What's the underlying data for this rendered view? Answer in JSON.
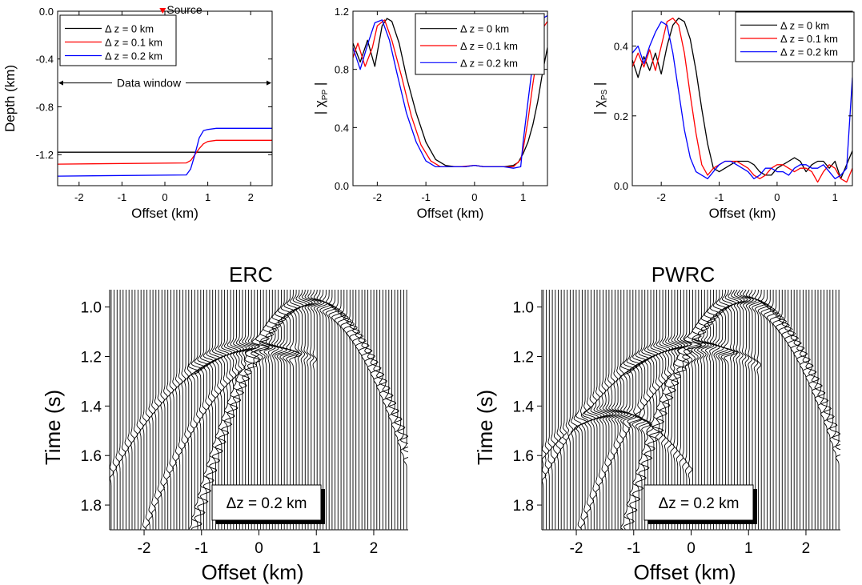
{
  "chart_data": [
    {
      "type": "line",
      "id": "depth",
      "xlabel": "Offset (km)",
      "ylabel": "Depth (km)",
      "xlim": [
        -2.5,
        2.5
      ],
      "ylim": [
        -1.46,
        0.0
      ],
      "xticks": [
        -2,
        -1,
        0,
        1,
        2
      ],
      "yticks": [
        0.0,
        -0.4,
        -0.8,
        -1.2
      ],
      "ytick_labels": [
        "0.0",
        "-0.4",
        "-0.8",
        "-1.2"
      ],
      "source_label": "Source",
      "source_color": "#ff0000",
      "source_x": -0.05,
      "window_label": "Data window",
      "window_range": [
        -2.5,
        2.5
      ],
      "window_depth": -0.6,
      "series": [
        {
          "name": "Δ z = 0 km",
          "color": "#000000",
          "x": [
            -2.5,
            0.5,
            0.8,
            1.0,
            2.5
          ],
          "y": [
            -1.18,
            -1.18,
            -1.18,
            -1.18,
            -1.18
          ]
        },
        {
          "name": "Δ z = 0.1 km",
          "color": "#ff0000",
          "x": [
            -2.5,
            0.5,
            0.6,
            0.7,
            0.8,
            0.9,
            1.0,
            1.2,
            2.5
          ],
          "y": [
            -1.28,
            -1.27,
            -1.25,
            -1.2,
            -1.15,
            -1.11,
            -1.09,
            -1.08,
            -1.08
          ]
        },
        {
          "name": "Δ z = 0.2 km",
          "color": "#0000ff",
          "x": [
            -2.5,
            0.5,
            0.6,
            0.7,
            0.8,
            0.9,
            1.0,
            1.2,
            2.5
          ],
          "y": [
            -1.38,
            -1.37,
            -1.32,
            -1.2,
            -1.06,
            -1.0,
            -0.99,
            -0.98,
            -0.98
          ]
        }
      ]
    },
    {
      "type": "line",
      "id": "pp",
      "xlabel": "Offset (km)",
      "ylabel_prefix": "| χ",
      "ylabel_sub": "PP",
      "ylabel_suffix": " |",
      "xlim": [
        -2.5,
        1.5
      ],
      "ylim": [
        0.0,
        1.2
      ],
      "xticks": [
        -2,
        -1,
        0,
        1
      ],
      "yticks": [
        0.0,
        0.4,
        0.8,
        1.2
      ],
      "ytick_labels": [
        "0.0",
        "0.4",
        "0.8",
        "1.2"
      ],
      "series": [
        {
          "name": "Δ z = 0 km",
          "color": "#000000",
          "x": [
            -2.5,
            -2.35,
            -2.2,
            -2.05,
            -1.9,
            -1.8,
            -1.7,
            -1.55,
            -1.4,
            -1.2,
            -1.0,
            -0.8,
            -0.6,
            -0.4,
            -0.2,
            0.0,
            0.2,
            0.4,
            0.6,
            0.8,
            0.9,
            1.0,
            1.1,
            1.2,
            1.3,
            1.4,
            1.5
          ],
          "y": [
            0.98,
            0.85,
            1.0,
            0.82,
            1.1,
            1.15,
            1.13,
            0.98,
            0.75,
            0.5,
            0.3,
            0.18,
            0.14,
            0.13,
            0.13,
            0.14,
            0.13,
            0.13,
            0.13,
            0.14,
            0.16,
            0.22,
            0.3,
            0.42,
            0.58,
            0.78,
            0.95
          ]
        },
        {
          "name": "Δ z = 0.1 km",
          "color": "#ff0000",
          "x": [
            -2.5,
            -2.4,
            -2.25,
            -2.1,
            -2.0,
            -1.85,
            -1.7,
            -1.5,
            -1.3,
            -1.1,
            -0.9,
            -0.7,
            -0.5,
            -0.3,
            0.0,
            0.2,
            0.4,
            0.6,
            0.8,
            0.95,
            1.0,
            1.1,
            1.2,
            1.3,
            1.4,
            1.5
          ],
          "y": [
            0.88,
            0.98,
            0.82,
            0.95,
            1.1,
            1.14,
            1.0,
            0.75,
            0.48,
            0.28,
            0.17,
            0.13,
            0.13,
            0.13,
            0.14,
            0.13,
            0.13,
            0.13,
            0.13,
            0.18,
            0.25,
            0.45,
            0.7,
            0.92,
            1.08,
            1.13
          ]
        },
        {
          "name": "Δ z = 0.2 km",
          "color": "#0000ff",
          "x": [
            -2.5,
            -2.35,
            -2.2,
            -2.05,
            -1.9,
            -1.75,
            -1.6,
            -1.4,
            -1.2,
            -1.0,
            -0.8,
            -0.6,
            -0.4,
            -0.2,
            0.0,
            0.2,
            0.4,
            0.6,
            0.8,
            0.95,
            1.0,
            1.1,
            1.2,
            1.3,
            1.4,
            1.5
          ],
          "y": [
            0.95,
            0.8,
            0.97,
            1.12,
            1.14,
            1.0,
            0.78,
            0.5,
            0.3,
            0.17,
            0.13,
            0.13,
            0.13,
            0.13,
            0.14,
            0.13,
            0.13,
            0.13,
            0.12,
            0.13,
            0.3,
            0.58,
            0.85,
            1.05,
            1.15,
            1.17
          ]
        }
      ]
    },
    {
      "type": "line",
      "id": "ps",
      "xlabel": "Offset (km)",
      "ylabel_prefix": "| χ",
      "ylabel_sub": "PS",
      "ylabel_suffix": " |",
      "xlim": [
        -2.5,
        1.3
      ],
      "ylim": [
        0.0,
        0.5
      ],
      "xticks": [
        -2,
        -1,
        0,
        1
      ],
      "yticks": [
        0.0,
        0.2,
        0.4
      ],
      "ytick_labels": [
        "0.0",
        "0.2",
        "0.4"
      ],
      "series": [
        {
          "name": "Δ z = 0 km",
          "color": "#000000",
          "x": [
            -2.5,
            -2.4,
            -2.3,
            -2.2,
            -2.1,
            -2.0,
            -1.9,
            -1.8,
            -1.7,
            -1.6,
            -1.5,
            -1.4,
            -1.3,
            -1.2,
            -1.1,
            -1.0,
            -0.9,
            -0.8,
            -0.7,
            -0.6,
            -0.5,
            -0.4,
            -0.3,
            -0.2,
            -0.1,
            0.0,
            0.1,
            0.2,
            0.3,
            0.4,
            0.5,
            0.6,
            0.7,
            0.8,
            0.9,
            1.0,
            1.1,
            1.2,
            1.3
          ],
          "y": [
            0.36,
            0.31,
            0.37,
            0.33,
            0.38,
            0.32,
            0.4,
            0.46,
            0.48,
            0.47,
            0.42,
            0.33,
            0.22,
            0.12,
            0.05,
            0.04,
            0.05,
            0.06,
            0.07,
            0.07,
            0.07,
            0.06,
            0.04,
            0.03,
            0.03,
            0.05,
            0.06,
            0.07,
            0.08,
            0.07,
            0.04,
            0.06,
            0.07,
            0.07,
            0.05,
            0.07,
            0.02,
            0.06,
            0.1
          ]
        },
        {
          "name": "Δ z = 0.1 km",
          "color": "#ff0000",
          "x": [
            -2.5,
            -2.4,
            -2.3,
            -2.2,
            -2.1,
            -2.0,
            -1.9,
            -1.8,
            -1.7,
            -1.6,
            -1.5,
            -1.4,
            -1.3,
            -1.2,
            -1.1,
            -1.0,
            -0.9,
            -0.8,
            -0.7,
            -0.6,
            -0.5,
            -0.4,
            -0.3,
            -0.2,
            -0.1,
            0.0,
            0.1,
            0.2,
            0.3,
            0.4,
            0.5,
            0.6,
            0.7,
            0.8,
            0.9,
            1.0,
            1.1,
            1.2,
            1.3
          ],
          "y": [
            0.34,
            0.38,
            0.34,
            0.39,
            0.33,
            0.4,
            0.47,
            0.48,
            0.46,
            0.38,
            0.26,
            0.15,
            0.06,
            0.03,
            0.05,
            0.06,
            0.07,
            0.07,
            0.07,
            0.06,
            0.05,
            0.03,
            0.02,
            0.03,
            0.05,
            0.06,
            0.06,
            0.05,
            0.04,
            0.05,
            0.05,
            0.04,
            0.01,
            0.04,
            0.06,
            0.05,
            0.02,
            0.01,
            0.05
          ]
        },
        {
          "name": "Δ z = 0.2 km",
          "color": "#0000ff",
          "x": [
            -2.5,
            -2.4,
            -2.3,
            -2.2,
            -2.1,
            -2.0,
            -1.9,
            -1.8,
            -1.7,
            -1.6,
            -1.5,
            -1.4,
            -1.3,
            -1.2,
            -1.1,
            -1.0,
            -0.9,
            -0.8,
            -0.7,
            -0.6,
            -0.5,
            -0.4,
            -0.3,
            -0.2,
            -0.1,
            0.0,
            0.1,
            0.2,
            0.3,
            0.4,
            0.5,
            0.6,
            0.7,
            0.8,
            0.9,
            1.0,
            1.1,
            1.2,
            1.3
          ],
          "y": [
            0.38,
            0.4,
            0.35,
            0.4,
            0.44,
            0.47,
            0.46,
            0.38,
            0.27,
            0.16,
            0.08,
            0.04,
            0.03,
            0.02,
            0.04,
            0.06,
            0.07,
            0.07,
            0.06,
            0.05,
            0.04,
            0.02,
            0.03,
            0.05,
            0.05,
            0.04,
            0.04,
            0.03,
            0.05,
            0.06,
            0.06,
            0.05,
            0.05,
            0.06,
            0.04,
            0.02,
            0.03,
            0.05,
            0.31
          ]
        }
      ]
    },
    {
      "type": "seismic",
      "id": "erc",
      "title": "ERC",
      "xlabel": "Offset (km)",
      "ylabel": "Time (s)",
      "xlim": [
        -2.6,
        2.6
      ],
      "ylim": [
        1.9,
        0.93
      ],
      "xticks": [
        -2,
        -1,
        0,
        1,
        2
      ],
      "yticks": [
        1.0,
        1.2,
        1.4,
        1.6,
        1.8
      ],
      "ytick_labels": [
        "1.0",
        "1.2",
        "1.4",
        "1.6",
        "1.8"
      ],
      "annotation": "Δz = 0.2 km",
      "events": [
        {
          "x0": 0.9,
          "t0": 0.98,
          "curv": 0.22,
          "range": [
            -2.6,
            2.6
          ],
          "bold_range": [
            -2.6,
            2.6
          ]
        },
        {
          "x0": -0.05,
          "t0": 1.16,
          "curv": 0.08,
          "range": [
            -2.6,
            0.6
          ],
          "bold_range": [
            -1.2,
            0.6
          ]
        },
        {
          "x0": 0.45,
          "t0": 1.18,
          "curv": 0.12,
          "range": [
            -2.6,
            1.0
          ],
          "bold_range": []
        }
      ]
    },
    {
      "type": "seismic",
      "id": "pwrc",
      "title": "PWRC",
      "xlabel": "Offset (km)",
      "ylabel": "Time (s)",
      "xlim": [
        -2.6,
        2.6
      ],
      "ylim": [
        1.9,
        0.93
      ],
      "xticks": [
        -2,
        -1,
        0,
        1,
        2
      ],
      "yticks": [
        1.0,
        1.2,
        1.4,
        1.6,
        1.8
      ],
      "ytick_labels": [
        "1.0",
        "1.2",
        "1.4",
        "1.6",
        "1.8"
      ],
      "annotation": "Δz = 0.2 km",
      "events": [
        {
          "x0": 0.9,
          "t0": 0.97,
          "curv": 0.22,
          "range": [
            -2.6,
            2.6
          ],
          "bold_range": [
            -2.6,
            2.6
          ]
        },
        {
          "x0": 0.0,
          "t0": 1.15,
          "curv": 0.08,
          "range": [
            -2.6,
            0.7
          ],
          "bold_range": [
            -1.2,
            0.7
          ]
        },
        {
          "x0": -1.4,
          "t0": 1.43,
          "curv": 0.12,
          "range": [
            -2.6,
            0.0
          ],
          "bold_range": [
            -2.0,
            -0.8
          ]
        },
        {
          "x0": 0.5,
          "t0": 1.18,
          "curv": 0.12,
          "range": [
            -2.6,
            1.2
          ],
          "bold_range": []
        }
      ]
    }
  ]
}
